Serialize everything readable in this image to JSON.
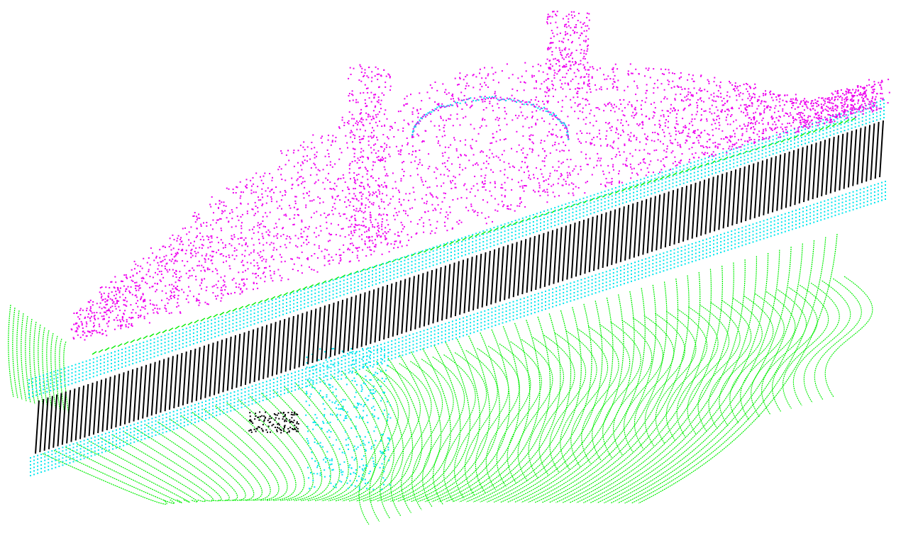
{
  "scene": {
    "description_visible_text": "",
    "background_color": "#ffffff",
    "layers": [
      {
        "name": "ground",
        "color": "#00ee00"
      },
      {
        "name": "road-edge",
        "color": "#00e5ee"
      },
      {
        "name": "vegetation",
        "color": "#ee00ee"
      },
      {
        "name": "road-scanlines",
        "color": "#000000"
      }
    ]
  }
}
